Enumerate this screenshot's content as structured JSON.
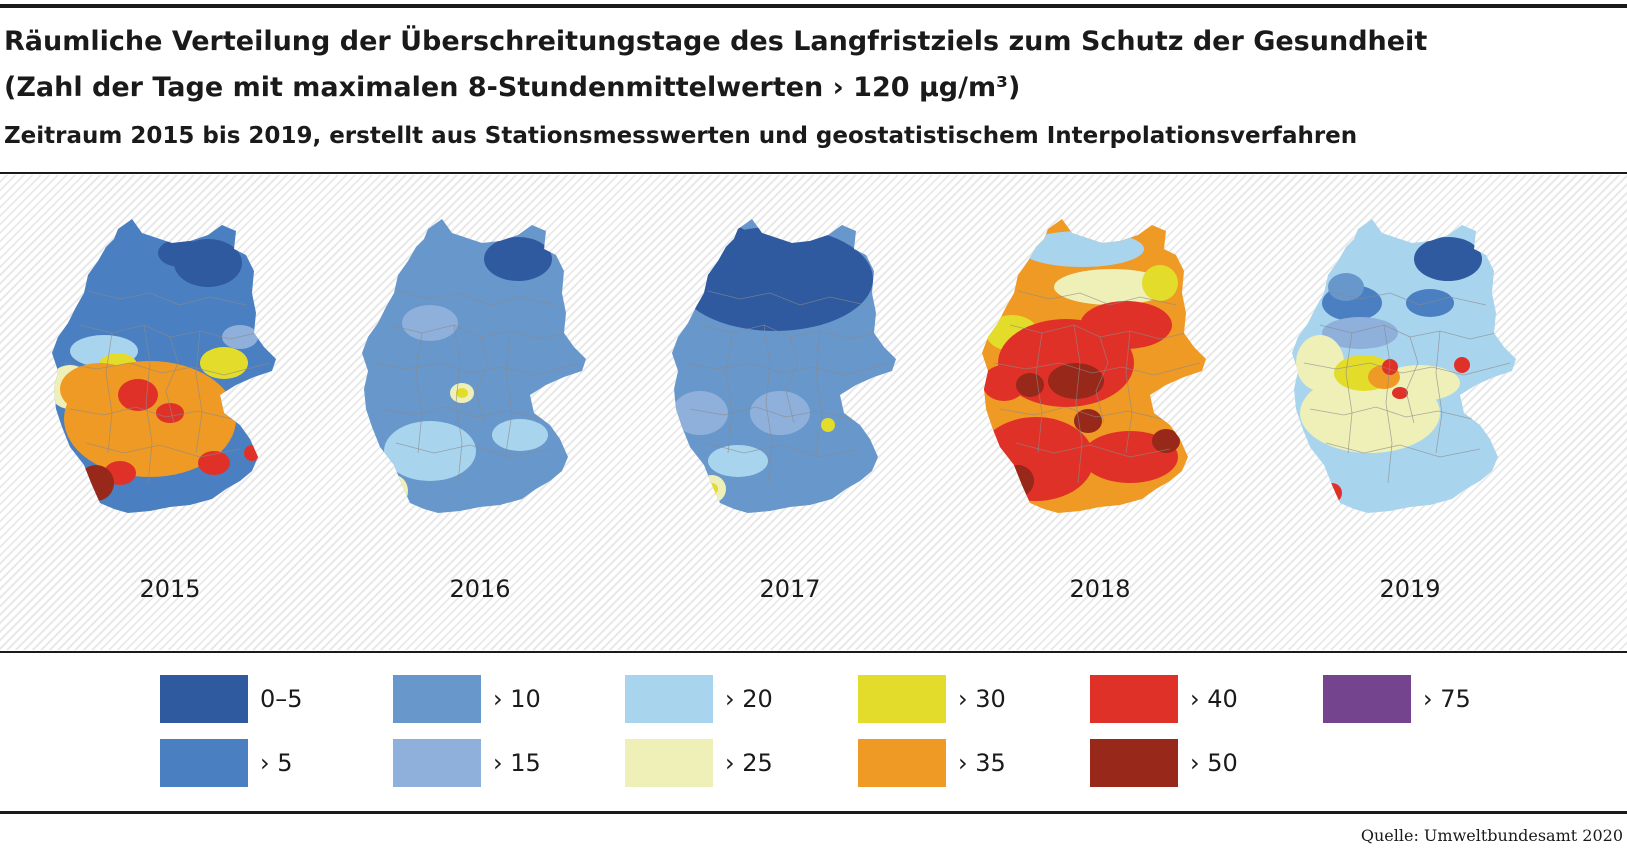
{
  "header": {
    "title_line1": "Räumliche Verteilung der Überschreitungstage des Langfristziels zum Schutz der Gesundheit",
    "title_line2": "(Zahl der Tage mit maximalen 8-Stundenmittelwerten › 120 µg/m³)",
    "subtitle": "Zeitraum 2015 bis 2019, erstellt aus Stationsmesswerten und geostatistischem Interpolationsverfahren"
  },
  "colors": {
    "c0": "#2f5aa0",
    "c5": "#4a7fc1",
    "c10": "#6897cc",
    "c15": "#8fb0da",
    "c20": "#a9d4ee",
    "c25": "#eef0b8",
    "c30": "#e3dc2a",
    "c35": "#ef9a24",
    "c40": "#e03128",
    "c50": "#97281a",
    "c75": "#74448f",
    "border": "#8a8a8a"
  },
  "maps": [
    {
      "year": "2015",
      "base": "c5"
    },
    {
      "year": "2016",
      "base": "c10"
    },
    {
      "year": "2017",
      "base": "c10"
    },
    {
      "year": "2018",
      "base": "c35"
    },
    {
      "year": "2019",
      "base": "c20"
    }
  ],
  "legend": [
    {
      "label": "0–5",
      "color": "c0"
    },
    {
      "label": "› 5",
      "color": "c5"
    },
    {
      "label": "› 10",
      "color": "c10"
    },
    {
      "label": "› 15",
      "color": "c15"
    },
    {
      "label": "› 20",
      "color": "c20"
    },
    {
      "label": "› 25",
      "color": "c25"
    },
    {
      "label": "› 30",
      "color": "c30"
    },
    {
      "label": "› 35",
      "color": "c35"
    },
    {
      "label": "› 40",
      "color": "c40"
    },
    {
      "label": "› 50",
      "color": "c50"
    },
    {
      "label": "› 75",
      "color": "c75"
    }
  ],
  "source": "Quelle: Umweltbundesamt 2020"
}
